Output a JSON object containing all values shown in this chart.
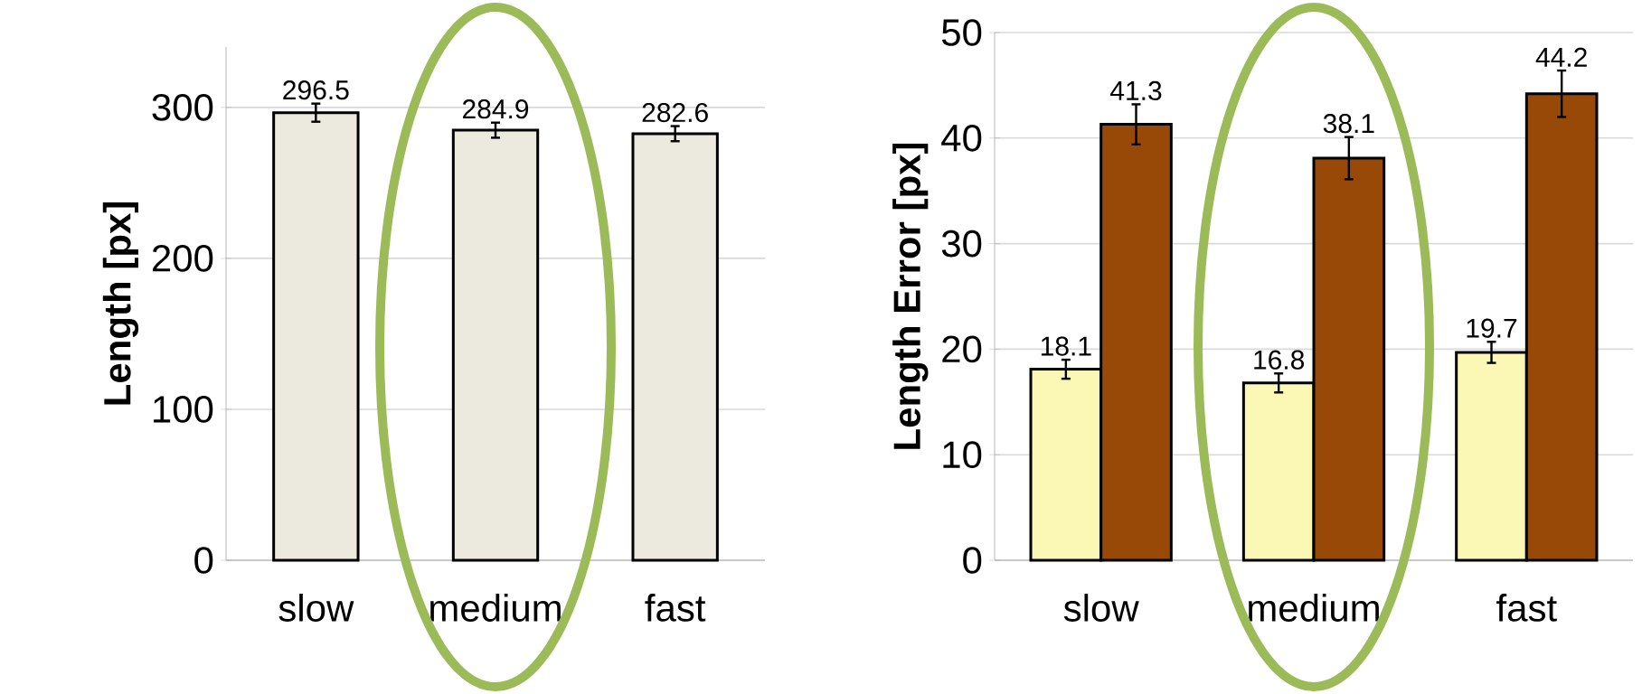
{
  "chart_data": [
    {
      "type": "bar",
      "ylabel": "Length [px]",
      "categories": [
        "slow",
        "medium",
        "fast"
      ],
      "values": [
        296.5,
        284.9,
        282.6
      ],
      "errors": [
        6,
        5,
        5
      ],
      "color": "#ece9df",
      "ylim": [
        0,
        340
      ],
      "yticks": [
        0,
        100,
        200,
        300
      ],
      "grid": "y",
      "data_labels": true
    },
    {
      "type": "bar",
      "ylabel": "Length Error [px]",
      "categories": [
        "slow",
        "medium",
        "fast"
      ],
      "series": [
        {
          "color": "#fbf7b5",
          "values": [
            18.1,
            16.8,
            19.7
          ],
          "errors": [
            0.9,
            0.9,
            1.0
          ]
        },
        {
          "color": "#984807",
          "values": [
            41.3,
            38.1,
            44.2
          ],
          "errors": [
            1.9,
            2.0,
            2.2
          ]
        }
      ],
      "ylim": [
        0,
        50
      ],
      "yticks": [
        0,
        10,
        20,
        30,
        40,
        50
      ],
      "grid": "y",
      "data_labels": true
    }
  ]
}
